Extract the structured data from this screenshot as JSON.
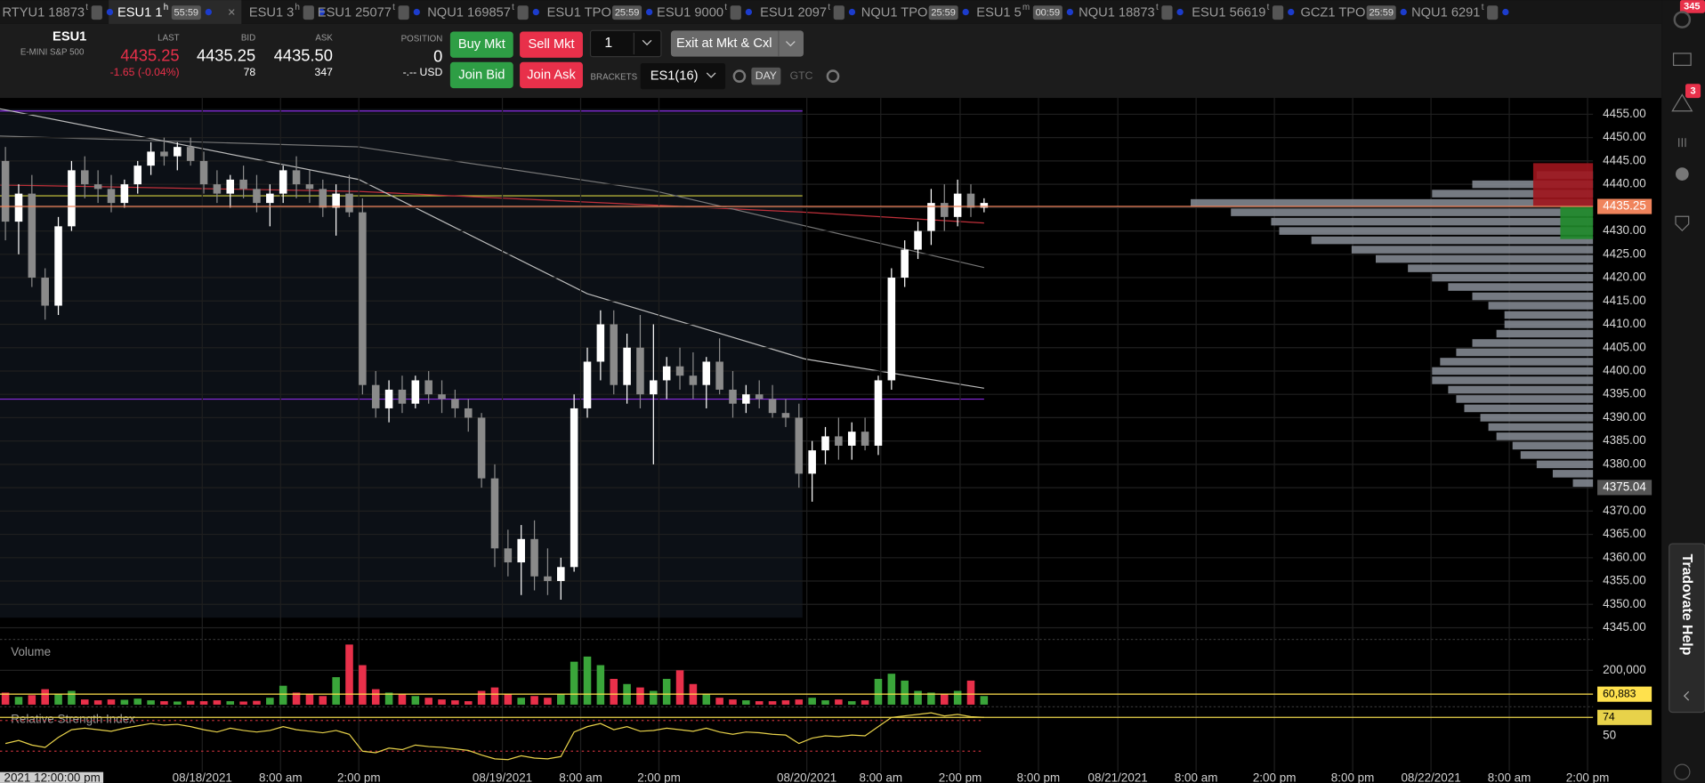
{
  "tabs": [
    {
      "label": "RTYU1 18873",
      "sup": "t"
    },
    {
      "label": "ESU1 1",
      "sup": "h",
      "timer": "55:59"
    },
    {
      "label": "ESU1 3",
      "sup": "h"
    },
    {
      "label": "ESU1 25077",
      "sup": "t"
    },
    {
      "label": "NQU1 169857",
      "sup": "t"
    },
    {
      "label": "ESU1 TPO",
      "timer": "25:59"
    },
    {
      "label": "ESU1 9000",
      "sup": "t"
    },
    {
      "label": "ESU1 2097",
      "sup": "t"
    },
    {
      "label": "NQU1 TPO",
      "timer": "25:59"
    },
    {
      "label": "ESU1 5",
      "sup": "m",
      "timer": "00:59"
    },
    {
      "label": "NQU1 18873",
      "sup": "t"
    },
    {
      "label": "ESU1 56619",
      "sup": "t"
    },
    {
      "label": "GCZ1 TPO",
      "timer": "25:59"
    },
    {
      "label": "NQU1 6291",
      "sup": "t"
    }
  ],
  "order_bar": {
    "symbol": "ESU1",
    "description": "E-MINI S&P 500",
    "last_label": "LAST",
    "last": "4435.25",
    "change": "-1.65 (-0.04%)",
    "bid_label": "BID",
    "bid": "4435.25",
    "bid_size": "78",
    "ask_label": "ASK",
    "ask": "4435.50",
    "ask_size": "347",
    "position_label": "POSITION",
    "position": "0",
    "pnl": "-.-- USD",
    "buy_mkt": "Buy Mkt",
    "sell_mkt": "Sell Mkt",
    "join_bid": "Join Bid",
    "join_ask": "Join Ask",
    "quantity": "1",
    "exit": "Exit at Mkt & Cxl",
    "brackets_label": "BRACKETS",
    "bracket": "ES1(16)",
    "day": "DAY",
    "gtc": "GTC"
  },
  "chart_data": {
    "type": "candlestick",
    "ohlc": [
      [
        4445,
        4448,
        4428,
        4432
      ],
      [
        4432,
        4440,
        4425,
        4438
      ],
      [
        4438,
        4442,
        4418,
        4420
      ],
      [
        4420,
        4422,
        4411,
        4414
      ],
      [
        4414,
        4433,
        4412,
        4431
      ],
      [
        4431,
        4445,
        4430,
        4443
      ],
      [
        4443,
        4446,
        4437,
        4440
      ],
      [
        4440,
        4443,
        4436,
        4439
      ],
      [
        4439,
        4442,
        4434,
        4436
      ],
      [
        4436,
        4441,
        4435,
        4440
      ],
      [
        4440,
        4445,
        4438,
        4444
      ],
      [
        4444,
        4449,
        4442,
        4447
      ],
      [
        4447,
        4450,
        4444,
        4446
      ],
      [
        4446,
        4449,
        4443,
        4448
      ],
      [
        4448,
        4450,
        4444,
        4445
      ],
      [
        4445,
        4447,
        4438,
        4440
      ],
      [
        4440,
        4443,
        4436,
        4438
      ],
      [
        4438,
        4442,
        4435,
        4441
      ],
      [
        4441,
        4444,
        4437,
        4439
      ],
      [
        4439,
        4442,
        4434,
        4436
      ],
      [
        4436,
        4440,
        4431,
        4438
      ],
      [
        4438,
        4444,
        4436,
        4443
      ],
      [
        4443,
        4446,
        4437,
        4440
      ],
      [
        4440,
        4443,
        4436,
        4439
      ],
      [
        4439,
        4441,
        4433,
        4435
      ],
      [
        4435,
        4440,
        4429,
        4438
      ],
      [
        4438,
        4442,
        4433,
        4434
      ],
      [
        4434,
        4437,
        4395,
        4397
      ],
      [
        4397,
        4400,
        4390,
        4392
      ],
      [
        4392,
        4398,
        4389,
        4396
      ],
      [
        4396,
        4399,
        4391,
        4393
      ],
      [
        4393,
        4399,
        4392,
        4398
      ],
      [
        4398,
        4400,
        4393,
        4395
      ],
      [
        4395,
        4398,
        4391,
        4394
      ],
      [
        4394,
        4396,
        4390,
        4392
      ],
      [
        4392,
        4394,
        4387,
        4390
      ],
      [
        4390,
        4391,
        4375,
        4377
      ],
      [
        4377,
        4380,
        4358,
        4362
      ],
      [
        4362,
        4366,
        4356,
        4359
      ],
      [
        4359,
        4367,
        4352,
        4364
      ],
      [
        4364,
        4368,
        4353,
        4356
      ],
      [
        4356,
        4362,
        4352,
        4355
      ],
      [
        4355,
        4360,
        4351,
        4358
      ],
      [
        4358,
        4395,
        4357,
        4392
      ],
      [
        4392,
        4405,
        4390,
        4402
      ],
      [
        4402,
        4413,
        4398,
        4410
      ],
      [
        4410,
        4413,
        4395,
        4397
      ],
      [
        4397,
        4408,
        4393,
        4405
      ],
      [
        4405,
        4412,
        4392,
        4395
      ],
      [
        4395,
        4410,
        4380,
        4398
      ],
      [
        4398,
        4403,
        4394,
        4401
      ],
      [
        4401,
        4405,
        4396,
        4399
      ],
      [
        4399,
        4404,
        4394,
        4397
      ],
      [
        4397,
        4403,
        4392,
        4402
      ],
      [
        4402,
        4407,
        4395,
        4396
      ],
      [
        4396,
        4400,
        4390,
        4393
      ],
      [
        4393,
        4397,
        4391,
        4395
      ],
      [
        4395,
        4398,
        4392,
        4394
      ],
      [
        4394,
        4397,
        4390,
        4391
      ],
      [
        4391,
        4394,
        4388,
        4390
      ],
      [
        4390,
        4393,
        4375,
        4378
      ],
      [
        4378,
        4385,
        4372,
        4383
      ],
      [
        4383,
        4388,
        4380,
        4386
      ],
      [
        4386,
        4390,
        4381,
        4384
      ],
      [
        4384,
        4389,
        4381,
        4387
      ],
      [
        4387,
        4390,
        4383,
        4384
      ],
      [
        4384,
        4399,
        4382,
        4398
      ],
      [
        4398,
        4422,
        4396,
        4420
      ],
      [
        4420,
        4428,
        4418,
        4426
      ],
      [
        4426,
        4432,
        4424,
        4430
      ],
      [
        4430,
        4439,
        4427,
        4436
      ],
      [
        4436,
        4440,
        4430,
        4433
      ],
      [
        4433,
        4441,
        4431,
        4438
      ],
      [
        4438,
        4440,
        4433,
        4435
      ],
      [
        4435,
        4437,
        4434,
        4436
      ]
    ],
    "up_color": "#ffffff",
    "down_color": "#8a8a8a",
    "ylim": [
      4342.5,
      4458.5
    ],
    "yticks": [
      {
        "value": 4345,
        "label": "4345.00"
      },
      {
        "value": 4350,
        "label": "4350.00"
      },
      {
        "value": 4355,
        "label": "4355.00"
      },
      {
        "value": 4360,
        "label": "4360.00"
      },
      {
        "value": 4365,
        "label": "4365.00"
      },
      {
        "value": 4370,
        "label": "4370.00"
      },
      {
        "value": 4375,
        "label": "4375.00"
      },
      {
        "value": 4380,
        "label": "4380.00"
      },
      {
        "value": 4385,
        "label": "4385.00"
      },
      {
        "value": 4390,
        "label": "4390.00"
      },
      {
        "value": 4395,
        "label": "4395.00"
      },
      {
        "value": 4400,
        "label": "4400.00"
      },
      {
        "value": 4405,
        "label": "4405.00"
      },
      {
        "value": 4410,
        "label": "4410.00"
      },
      {
        "value": 4415,
        "label": "4415.00"
      },
      {
        "value": 4420,
        "label": "4420.00"
      },
      {
        "value": 4425,
        "label": "4425.00"
      },
      {
        "value": 4430,
        "label": "4430.00"
      },
      {
        "value": 4435,
        "label": "4435.00"
      },
      {
        "value": 4440,
        "label": "4440.00"
      },
      {
        "value": 4445,
        "label": "4445.00"
      },
      {
        "value": 4450,
        "label": "4450.00"
      },
      {
        "value": 4455,
        "label": "4455.00"
      }
    ],
    "grid": true,
    "last_price": {
      "value": 4435.25,
      "label": "4435.25",
      "color": "#f0845c"
    },
    "marker": {
      "value": 4375.04,
      "label": "4375.04",
      "color": "#555555"
    },
    "x_labels": [
      "2021 12:00:00 pm",
      "08/18/2021",
      "8:00 am",
      "2:00 pm",
      "08/19/2021",
      "8:00 am",
      "2:00 pm",
      "08/20/2021",
      "8:00 am",
      "2:00 pm",
      "8:00 pm",
      "08/21/2021",
      "8:00 am",
      "2:00 pm",
      "8:00 pm",
      "08/22/2021",
      "8:00 am",
      "2:00 pm"
    ],
    "volume_profile": {
      "prices": [
        4376,
        4378,
        4380,
        4382,
        4384,
        4386,
        4388,
        4390,
        4392,
        4394,
        4396,
        4398,
        4400,
        4402,
        4404,
        4406,
        4408,
        4410,
        4412,
        4414,
        4416,
        4418,
        4420,
        4422,
        4424,
        4426,
        4428,
        4430,
        4432,
        4434,
        4436,
        4438,
        4440,
        4442
      ],
      "values": [
        5,
        10,
        14,
        18,
        20,
        24,
        26,
        28,
        32,
        34,
        36,
        40,
        40,
        38,
        34,
        30,
        24,
        22,
        22,
        26,
        30,
        36,
        40,
        46,
        54,
        60,
        70,
        78,
        80,
        90,
        100,
        40,
        30,
        14
      ],
      "xlim": [
        0,
        100
      ],
      "color": "#8a8f99"
    },
    "volume": {
      "title": "Volume",
      "values": [
        70000,
        45000,
        55000,
        90000,
        60000,
        80000,
        30000,
        25000,
        30000,
        28000,
        35000,
        25000,
        20000,
        18000,
        22000,
        20000,
        25000,
        20000,
        18000,
        22000,
        40000,
        110000,
        70000,
        60000,
        50000,
        160000,
        350000,
        230000,
        90000,
        70000,
        60000,
        50000,
        40000,
        30000,
        25000,
        20000,
        80000,
        100000,
        60000,
        40000,
        50000,
        40000,
        60000,
        250000,
        280000,
        230000,
        150000,
        120000,
        100000,
        80000,
        150000,
        200000,
        120000,
        60000,
        40000,
        30000,
        25000,
        20000,
        20000,
        25000,
        30000,
        40000,
        25000,
        30000,
        20000,
        25000,
        150000,
        180000,
        140000,
        80000,
        70000,
        60000,
        80000,
        140000,
        50000
      ],
      "up_color": "#3aa53a",
      "down_color": "#e8304a",
      "ylim": [
        0,
        380000
      ],
      "yticks": [
        {
          "value": 200000,
          "label": "200,000"
        }
      ],
      "average": {
        "value": 60883,
        "label": "60,883",
        "color": "#ffe14d"
      }
    },
    "rsi": {
      "title": "Relative Strength Index",
      "values": [
        40,
        44,
        38,
        35,
        48,
        58,
        60,
        58,
        56,
        60,
        63,
        66,
        64,
        65,
        62,
        58,
        55,
        60,
        57,
        55,
        57,
        62,
        58,
        56,
        54,
        57,
        52,
        30,
        28,
        34,
        32,
        38,
        36,
        35,
        33,
        31,
        25,
        20,
        19,
        24,
        21,
        20,
        23,
        55,
        62,
        66,
        58,
        62,
        56,
        57,
        60,
        58,
        56,
        60,
        55,
        52,
        55,
        54,
        52,
        51,
        40,
        47,
        50,
        49,
        51,
        50,
        62,
        74,
        76,
        78,
        80,
        76,
        78,
        75,
        74
      ],
      "color": "#e8d24a",
      "ylim": [
        0,
        85
      ],
      "yticks": [
        50
      ],
      "levels": [
        30,
        70
      ],
      "current": 74
    }
  },
  "sidebar": {
    "top_badge": "345",
    "alert_badge": "3",
    "help": "Tradovate Help"
  }
}
